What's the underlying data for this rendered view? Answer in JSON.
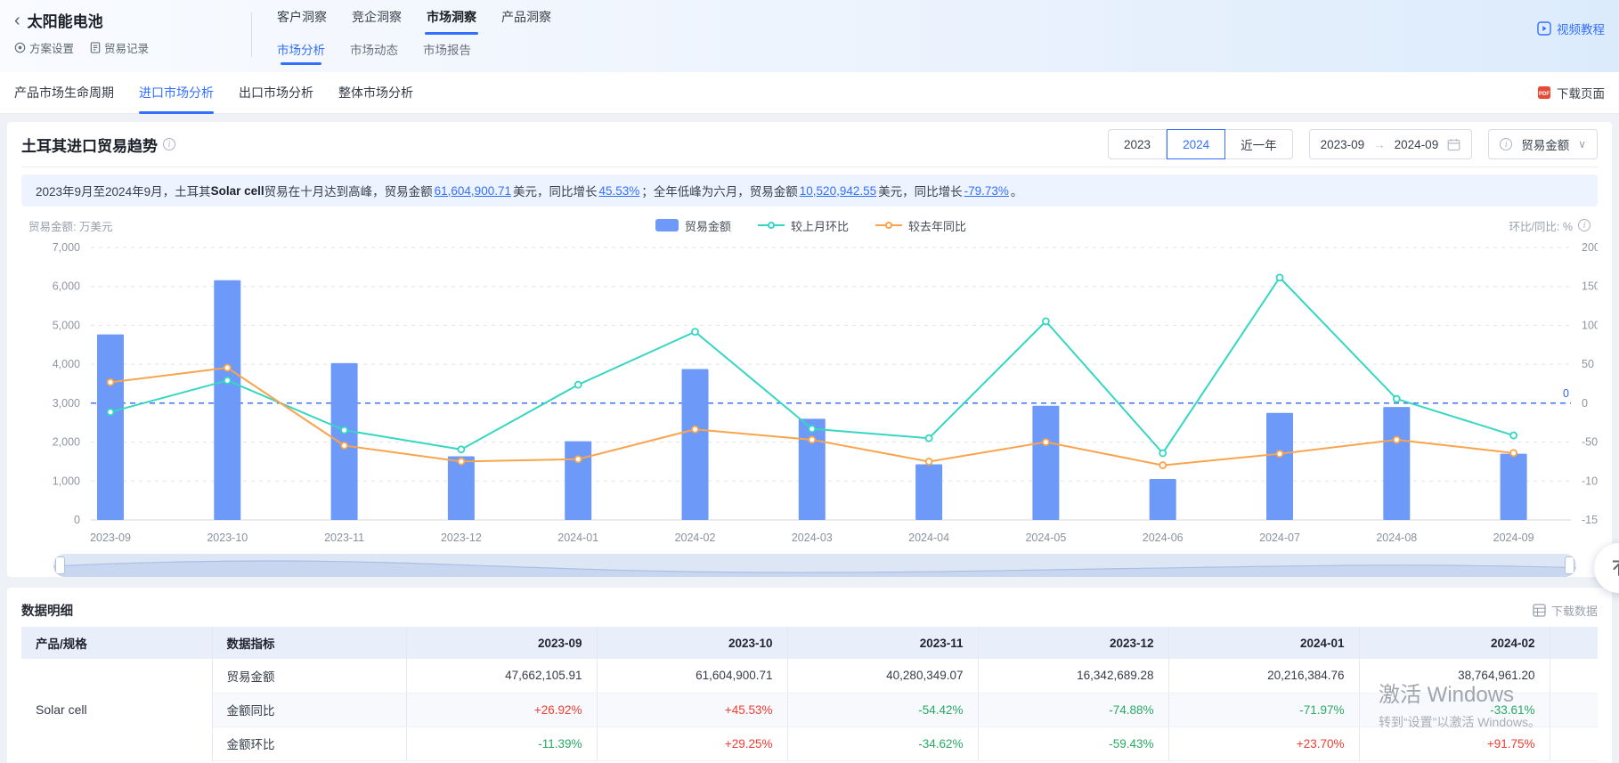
{
  "header": {
    "back_title": "太阳能电池",
    "scheme_settings": "方案设置",
    "trade_records": "贸易记录",
    "top_tabs": [
      {
        "label": "客户洞察"
      },
      {
        "label": "竞企洞察"
      },
      {
        "label": "市场洞察"
      },
      {
        "label": "产品洞察"
      }
    ],
    "sub_tabs": [
      {
        "label": "市场分析"
      },
      {
        "label": "市场动态"
      },
      {
        "label": "市场报告"
      }
    ],
    "video_tutorial": "视频教程"
  },
  "nav": {
    "items": [
      {
        "label": "产品市场生命周期"
      },
      {
        "label": "进口市场分析"
      },
      {
        "label": "出口市场分析"
      },
      {
        "label": "整体市场分析"
      }
    ],
    "download_page": "下载页面"
  },
  "trend": {
    "title": "土耳其进口贸易趋势",
    "year_buttons": [
      {
        "label": "2023"
      },
      {
        "label": "2024"
      },
      {
        "label": "近一年"
      }
    ],
    "active_year": "2024",
    "date_from": "2023-09",
    "date_to": "2024-09",
    "metric_dropdown": "贸易金额",
    "summary_segments": [
      {
        "t": "2023年9月至2024年9月，土耳其"
      },
      {
        "t": "Solar cell",
        "bold": true
      },
      {
        "t": "贸易在十月达到高峰，贸易金额"
      },
      {
        "t": "61,604,900.71",
        "hl": true
      },
      {
        "t": "美元，同比增长"
      },
      {
        "t": "45.53%",
        "hl": true
      },
      {
        "t": "；全年低峰为六月，贸易金额"
      },
      {
        "t": "10,520,942.55",
        "hl": true
      },
      {
        "t": "美元，同比增长"
      },
      {
        "t": "-79.73%",
        "hl": true
      },
      {
        "t": "。"
      }
    ]
  },
  "chart_data": {
    "type": "bar+line",
    "categories": [
      "2023-09",
      "2023-10",
      "2023-11",
      "2023-12",
      "2024-01",
      "2024-02",
      "2024-03",
      "2024-04",
      "2024-05",
      "2024-06",
      "2024-07",
      "2024-08",
      "2024-09"
    ],
    "series": [
      {
        "name": "贸易金额",
        "type": "bar",
        "unit": "万美元",
        "color": "#6d9af8",
        "values": [
          4766.21,
          6160.49,
          4028.03,
          1634.27,
          2021.64,
          3876.5,
          2598,
          1430,
          2935,
          1052.09,
          2750,
          2901,
          1700
        ]
      },
      {
        "name": "较上月环比",
        "type": "line",
        "unit": "%",
        "axis": "right",
        "color": "#35d6c2",
        "values": [
          -11.39,
          29.25,
          -34.62,
          -59.43,
          23.7,
          91.75,
          -32.97,
          -45.0,
          105.2,
          -64.2,
          161.4,
          5.5,
          -41.4
        ]
      },
      {
        "name": "较去年同比",
        "type": "line",
        "unit": "%",
        "axis": "right",
        "color": "#f9a44c",
        "values": [
          26.92,
          45.53,
          -54.42,
          -74.88,
          -71.97,
          -33.61,
          -47.0,
          -75.0,
          -50.0,
          -79.73,
          -65.0,
          -47.0,
          -64.0
        ]
      }
    ],
    "left_axis": {
      "caption": "贸易金额: 万美元",
      "min": 0,
      "max": 7000,
      "ticks": [
        {
          "v": 7000,
          "label": "7,000"
        },
        {
          "v": 6000,
          "label": "6,000"
        },
        {
          "v": 5000,
          "label": "5,000"
        },
        {
          "v": 4000,
          "label": "4,000"
        },
        {
          "v": 3000,
          "label": "3,000"
        },
        {
          "v": 2000,
          "label": "2,000"
        },
        {
          "v": 1000,
          "label": "1,000"
        },
        {
          "v": 0,
          "label": "0"
        }
      ]
    },
    "right_axis": {
      "caption": "环比/同比: %",
      "min": -150,
      "max": 200,
      "ticks": [
        {
          "label": "200"
        },
        {
          "label": "150"
        },
        {
          "label": "100"
        },
        {
          "label": "50"
        },
        {
          "label": "0"
        },
        {
          "label": "-50"
        },
        {
          "label": "-100"
        },
        {
          "label": "-150"
        }
      ]
    },
    "zero_line_left_value": 3000,
    "zero_line_label": "0",
    "legend_position": "top-center",
    "grid": true
  },
  "table": {
    "section_title": "数据明细",
    "download_label": "下载数据",
    "columns": [
      {
        "label": "产品/规格"
      },
      {
        "label": "数据指标"
      },
      {
        "label": "2023-09"
      },
      {
        "label": "2023-10"
      },
      {
        "label": "2023-11"
      },
      {
        "label": "2023-12"
      },
      {
        "label": "2024-01"
      },
      {
        "label": "2024-02"
      }
    ],
    "product": "Solar cell",
    "rows": [
      {
        "metric": "贸易金额",
        "values": [
          "47,662,105.91",
          "61,604,900.71",
          "40,280,349.07",
          "16,342,689.28",
          "20,216,384.76",
          "38,764,961.20"
        ]
      },
      {
        "metric": "金额同比",
        "values": [
          "+26.92%",
          "+45.53%",
          "-54.42%",
          "-74.88%",
          "-71.97%",
          "-33.61%"
        ]
      },
      {
        "metric": "金额环比",
        "values": [
          "-11.39%",
          "+29.25%",
          "-34.62%",
          "-59.43%",
          "+23.70%",
          "+91.75%"
        ]
      }
    ],
    "status_colors": {
      "positive": "#f23c31",
      "negative": "#27ab63"
    }
  },
  "watermark": {
    "line1": "激活 Windows",
    "line2": "转到“设置”以激活 Windows。"
  },
  "icons": {
    "back_chevron": "‹",
    "range_arrow": "→",
    "dropdown_chevron": "∨"
  }
}
